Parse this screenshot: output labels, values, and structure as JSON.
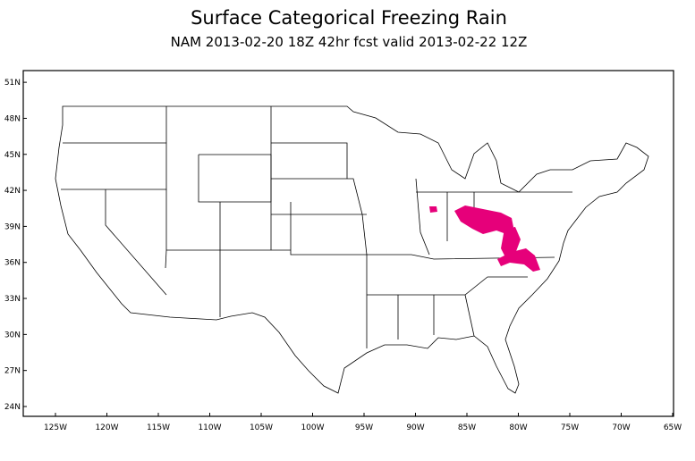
{
  "title": "Surface Categorical Freezing Rain",
  "subtitle": "NAM 2013-02-20 18Z 42hr fcst valid 2013-02-22 12Z",
  "lat_ticks": [
    {
      "value": 51,
      "label": "51N"
    },
    {
      "value": 48,
      "label": "48N"
    },
    {
      "value": 45,
      "label": "45N"
    },
    {
      "value": 42,
      "label": "42N"
    },
    {
      "value": 39,
      "label": "39N"
    },
    {
      "value": 36,
      "label": "36N"
    },
    {
      "value": 33,
      "label": "33N"
    },
    {
      "value": 30,
      "label": "30N"
    },
    {
      "value": 27,
      "label": "27N"
    },
    {
      "value": 24,
      "label": "24N"
    }
  ],
  "lon_ticks": [
    {
      "value": -125,
      "label": "125W"
    },
    {
      "value": -120,
      "label": "120W"
    },
    {
      "value": -115,
      "label": "115W"
    },
    {
      "value": -110,
      "label": "110W"
    },
    {
      "value": -105,
      "label": "105W"
    },
    {
      "value": -100,
      "label": "100W"
    },
    {
      "value": -95,
      "label": "95W"
    },
    {
      "value": -90,
      "label": "90W"
    },
    {
      "value": -85,
      "label": "85W"
    },
    {
      "value": -80,
      "label": "80W"
    },
    {
      "value": -75,
      "label": "75W"
    },
    {
      "value": -70,
      "label": "70W"
    },
    {
      "value": -65,
      "label": "65W"
    }
  ]
}
